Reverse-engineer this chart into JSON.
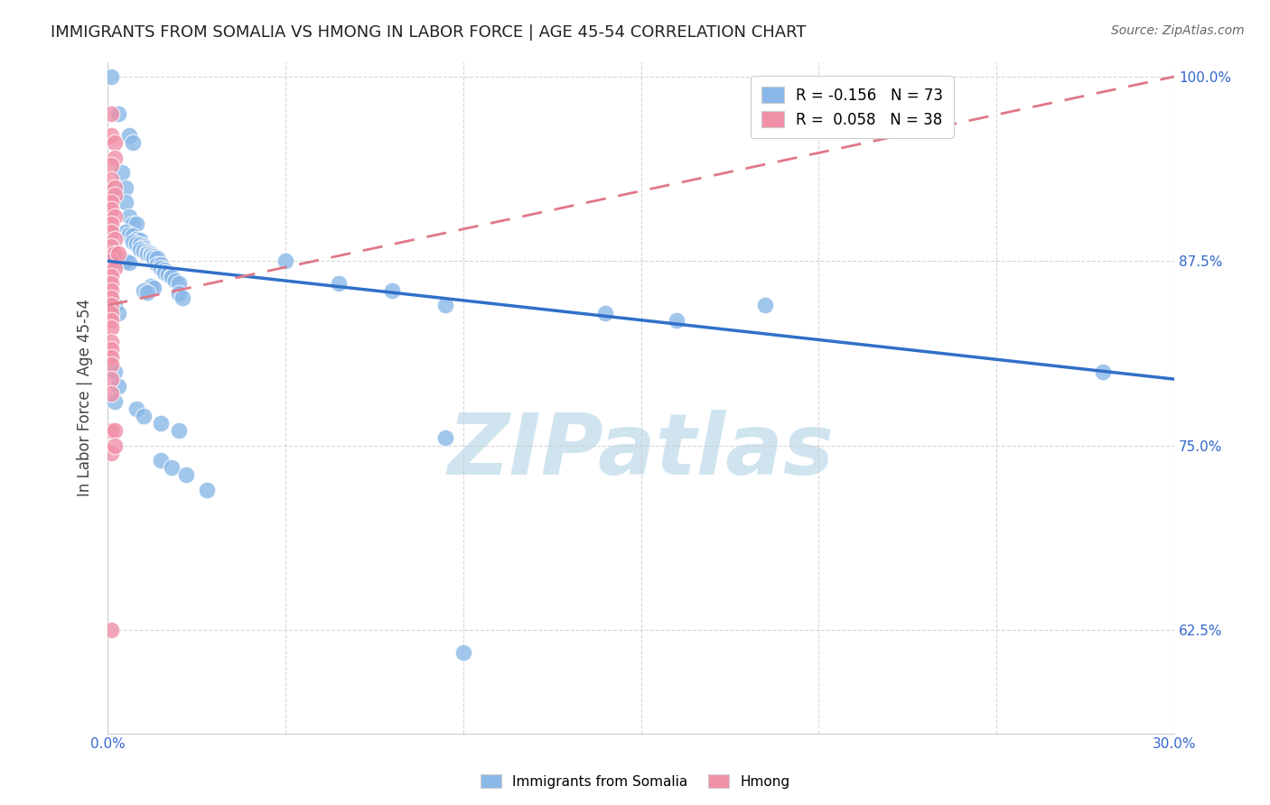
{
  "title": "IMMIGRANTS FROM SOMALIA VS HMONG IN LABOR FORCE | AGE 45-54 CORRELATION CHART",
  "source": "Source: ZipAtlas.com",
  "ylabel": "In Labor Force | Age 45-54",
  "xlim": [
    0.0,
    0.3
  ],
  "ylim": [
    0.555,
    1.01
  ],
  "yticks": [
    0.625,
    0.75,
    0.875,
    1.0
  ],
  "ytick_labels": [
    "62.5%",
    "75.0%",
    "87.5%",
    "100.0%"
  ],
  "somalia_color": "#8ab8e8",
  "hmong_color": "#f090a8",
  "watermark": "ZIPatlas",
  "watermark_color": "#d0e4f0",
  "background_color": "#ffffff",
  "somalia_line_color": "#3070c8",
  "hmong_line_color": "#e07888",
  "somalia_scatter": [
    [
      0.001,
      1.0
    ],
    [
      0.003,
      0.975
    ],
    [
      0.006,
      0.96
    ],
    [
      0.007,
      0.955
    ],
    [
      0.004,
      0.935
    ],
    [
      0.005,
      0.925
    ],
    [
      0.005,
      0.915
    ],
    [
      0.006,
      0.905
    ],
    [
      0.007,
      0.9
    ],
    [
      0.008,
      0.9
    ],
    [
      0.005,
      0.895
    ],
    [
      0.006,
      0.893
    ],
    [
      0.007,
      0.892
    ],
    [
      0.008,
      0.89
    ],
    [
      0.009,
      0.889
    ],
    [
      0.007,
      0.888
    ],
    [
      0.008,
      0.887
    ],
    [
      0.009,
      0.886
    ],
    [
      0.01,
      0.885
    ],
    [
      0.01,
      0.884
    ],
    [
      0.009,
      0.883
    ],
    [
      0.01,
      0.882
    ],
    [
      0.011,
      0.881
    ],
    [
      0.011,
      0.88
    ],
    [
      0.012,
      0.88
    ],
    [
      0.012,
      0.879
    ],
    [
      0.013,
      0.878
    ],
    [
      0.013,
      0.877
    ],
    [
      0.014,
      0.877
    ],
    [
      0.003,
      0.876
    ],
    [
      0.004,
      0.875
    ],
    [
      0.005,
      0.875
    ],
    [
      0.006,
      0.874
    ],
    [
      0.014,
      0.873
    ],
    [
      0.015,
      0.873
    ],
    [
      0.015,
      0.87
    ],
    [
      0.016,
      0.869
    ],
    [
      0.016,
      0.867
    ],
    [
      0.017,
      0.866
    ],
    [
      0.018,
      0.865
    ],
    [
      0.018,
      0.864
    ],
    [
      0.019,
      0.862
    ],
    [
      0.02,
      0.86
    ],
    [
      0.012,
      0.858
    ],
    [
      0.013,
      0.857
    ],
    [
      0.01,
      0.855
    ],
    [
      0.011,
      0.854
    ],
    [
      0.02,
      0.853
    ],
    [
      0.021,
      0.85
    ],
    [
      0.002,
      0.845
    ],
    [
      0.003,
      0.84
    ],
    [
      0.05,
      0.875
    ],
    [
      0.065,
      0.86
    ],
    [
      0.08,
      0.855
    ],
    [
      0.095,
      0.845
    ],
    [
      0.14,
      0.84
    ],
    [
      0.16,
      0.835
    ],
    [
      0.185,
      0.845
    ],
    [
      0.002,
      0.8
    ],
    [
      0.003,
      0.79
    ],
    [
      0.002,
      0.78
    ],
    [
      0.008,
      0.775
    ],
    [
      0.01,
      0.77
    ],
    [
      0.015,
      0.765
    ],
    [
      0.02,
      0.76
    ],
    [
      0.015,
      0.74
    ],
    [
      0.018,
      0.735
    ],
    [
      0.022,
      0.73
    ],
    [
      0.028,
      0.72
    ],
    [
      0.095,
      0.755
    ],
    [
      0.28,
      0.8
    ],
    [
      0.1,
      0.61
    ]
  ],
  "hmong_scatter": [
    [
      0.001,
      0.975
    ],
    [
      0.001,
      0.96
    ],
    [
      0.002,
      0.955
    ],
    [
      0.002,
      0.945
    ],
    [
      0.001,
      0.94
    ],
    [
      0.001,
      0.93
    ],
    [
      0.002,
      0.925
    ],
    [
      0.002,
      0.92
    ],
    [
      0.001,
      0.915
    ],
    [
      0.001,
      0.91
    ],
    [
      0.002,
      0.905
    ],
    [
      0.001,
      0.9
    ],
    [
      0.001,
      0.895
    ],
    [
      0.002,
      0.89
    ],
    [
      0.001,
      0.885
    ],
    [
      0.002,
      0.88
    ],
    [
      0.001,
      0.875
    ],
    [
      0.002,
      0.87
    ],
    [
      0.001,
      0.865
    ],
    [
      0.001,
      0.86
    ],
    [
      0.001,
      0.855
    ],
    [
      0.001,
      0.85
    ],
    [
      0.001,
      0.845
    ],
    [
      0.001,
      0.84
    ],
    [
      0.001,
      0.835
    ],
    [
      0.001,
      0.83
    ],
    [
      0.001,
      0.82
    ],
    [
      0.001,
      0.815
    ],
    [
      0.001,
      0.81
    ],
    [
      0.001,
      0.805
    ],
    [
      0.001,
      0.795
    ],
    [
      0.001,
      0.785
    ],
    [
      0.001,
      0.76
    ],
    [
      0.001,
      0.745
    ],
    [
      0.002,
      0.76
    ],
    [
      0.002,
      0.75
    ],
    [
      0.001,
      0.625
    ],
    [
      0.003,
      0.88
    ]
  ],
  "somalia_line_x": [
    0.0,
    0.3
  ],
  "somalia_line_y": [
    0.875,
    0.795
  ],
  "hmong_line_x": [
    0.0,
    0.3
  ],
  "hmong_line_y": [
    0.845,
    1.0
  ]
}
